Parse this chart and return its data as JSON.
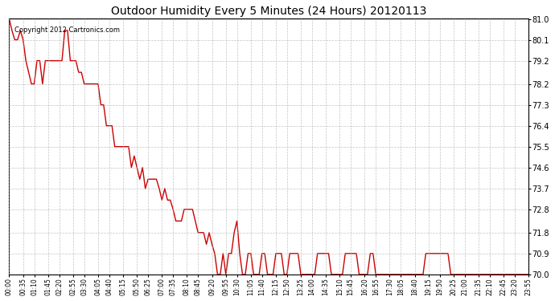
{
  "title": "Outdoor Humidity Every 5 Minutes (24 Hours) 20120113",
  "copyright_text": "Copyright 2012 Cartronics.com",
  "line_color": "#cc0000",
  "background_color": "#ffffff",
  "grid_color": "#aaaaaa",
  "ylim": [
    70.0,
    81.0
  ],
  "yticks": [
    70.0,
    70.9,
    71.8,
    72.8,
    73.7,
    74.6,
    75.5,
    76.4,
    77.3,
    78.2,
    79.2,
    80.1,
    81.0
  ],
  "xlabel": "",
  "ylabel": "",
  "x_labels": [
    "00:00",
    "00:35",
    "01:10",
    "01:45",
    "02:20",
    "02:55",
    "03:30",
    "04:05",
    "04:40",
    "05:15",
    "05:50",
    "06:25",
    "07:00",
    "07:35",
    "08:10",
    "08:45",
    "09:20",
    "09:55",
    "10:30",
    "11:05",
    "11:40",
    "12:15",
    "12:50",
    "13:25",
    "14:00",
    "14:35",
    "15:10",
    "15:45",
    "16:20",
    "16:55",
    "17:30",
    "18:05",
    "18:40",
    "19:15",
    "19:50",
    "20:25",
    "21:00",
    "21:35",
    "22:10",
    "22:45",
    "23:20",
    "23:55"
  ],
  "humidity_data": [
    [
      0,
      81.0
    ],
    [
      1,
      80.5
    ],
    [
      2,
      80.1
    ],
    [
      3,
      80.1
    ],
    [
      4,
      80.5
    ],
    [
      5,
      80.1
    ],
    [
      6,
      79.2
    ],
    [
      7,
      78.7
    ],
    [
      8,
      78.2
    ],
    [
      9,
      78.2
    ],
    [
      10,
      79.2
    ],
    [
      11,
      79.2
    ],
    [
      12,
      78.2
    ],
    [
      13,
      79.2
    ],
    [
      14,
      79.2
    ],
    [
      15,
      79.2
    ],
    [
      16,
      79.2
    ],
    [
      17,
      79.2
    ],
    [
      18,
      79.2
    ],
    [
      19,
      79.2
    ],
    [
      20,
      80.5
    ],
    [
      21,
      80.5
    ],
    [
      22,
      79.2
    ],
    [
      23,
      79.2
    ],
    [
      24,
      79.2
    ],
    [
      25,
      78.7
    ],
    [
      26,
      78.7
    ],
    [
      27,
      78.2
    ],
    [
      28,
      78.2
    ],
    [
      29,
      78.2
    ],
    [
      30,
      78.2
    ],
    [
      31,
      78.2
    ],
    [
      32,
      78.2
    ],
    [
      33,
      77.3
    ],
    [
      34,
      77.3
    ],
    [
      35,
      76.4
    ],
    [
      36,
      76.4
    ],
    [
      37,
      76.4
    ],
    [
      38,
      75.5
    ],
    [
      39,
      75.5
    ],
    [
      40,
      75.5
    ],
    [
      41,
      75.5
    ],
    [
      42,
      75.5
    ],
    [
      43,
      75.5
    ],
    [
      44,
      74.6
    ],
    [
      45,
      75.1
    ],
    [
      46,
      74.6
    ],
    [
      47,
      74.1
    ],
    [
      48,
      74.6
    ],
    [
      49,
      73.7
    ],
    [
      50,
      74.1
    ],
    [
      51,
      74.1
    ],
    [
      52,
      74.1
    ],
    [
      53,
      74.1
    ],
    [
      54,
      73.7
    ],
    [
      55,
      73.2
    ],
    [
      56,
      73.7
    ],
    [
      57,
      73.2
    ],
    [
      58,
      73.2
    ],
    [
      59,
      72.8
    ],
    [
      60,
      72.3
    ],
    [
      61,
      72.3
    ],
    [
      62,
      72.3
    ],
    [
      63,
      72.8
    ],
    [
      64,
      72.8
    ],
    [
      65,
      72.8
    ],
    [
      66,
      72.8
    ],
    [
      67,
      72.3
    ],
    [
      68,
      71.8
    ],
    [
      69,
      71.8
    ],
    [
      70,
      71.8
    ],
    [
      71,
      71.3
    ],
    [
      72,
      71.8
    ],
    [
      73,
      71.3
    ],
    [
      74,
      70.9
    ],
    [
      75,
      70.0
    ],
    [
      76,
      70.0
    ],
    [
      77,
      70.9
    ],
    [
      78,
      70.0
    ],
    [
      79,
      70.9
    ],
    [
      80,
      70.9
    ],
    [
      81,
      71.8
    ],
    [
      82,
      72.3
    ],
    [
      83,
      70.9
    ],
    [
      84,
      70.0
    ],
    [
      85,
      70.0
    ],
    [
      86,
      70.9
    ],
    [
      87,
      70.9
    ],
    [
      88,
      70.0
    ],
    [
      89,
      70.0
    ],
    [
      90,
      70.0
    ],
    [
      91,
      70.9
    ],
    [
      92,
      70.9
    ],
    [
      93,
      70.0
    ],
    [
      94,
      70.0
    ],
    [
      95,
      70.0
    ],
    [
      96,
      70.9
    ],
    [
      97,
      70.9
    ],
    [
      98,
      70.9
    ],
    [
      99,
      70.0
    ],
    [
      100,
      70.0
    ],
    [
      101,
      70.9
    ],
    [
      102,
      70.9
    ],
    [
      103,
      70.9
    ],
    [
      104,
      70.9
    ],
    [
      105,
      70.0
    ],
    [
      106,
      70.0
    ],
    [
      107,
      70.0
    ],
    [
      108,
      70.0
    ],
    [
      109,
      70.0
    ],
    [
      110,
      70.0
    ],
    [
      111,
      70.9
    ],
    [
      112,
      70.9
    ],
    [
      113,
      70.9
    ],
    [
      114,
      70.9
    ],
    [
      115,
      70.9
    ],
    [
      116,
      70.0
    ],
    [
      117,
      70.0
    ],
    [
      118,
      70.0
    ],
    [
      119,
      70.0
    ],
    [
      120,
      70.0
    ],
    [
      121,
      70.9
    ],
    [
      122,
      70.9
    ],
    [
      123,
      70.9
    ],
    [
      124,
      70.9
    ],
    [
      125,
      70.9
    ],
    [
      126,
      70.0
    ],
    [
      127,
      70.0
    ],
    [
      128,
      70.0
    ],
    [
      129,
      70.0
    ],
    [
      130,
      70.9
    ],
    [
      131,
      70.9
    ],
    [
      132,
      70.0
    ],
    [
      133,
      70.0
    ],
    [
      134,
      70.0
    ],
    [
      135,
      70.0
    ],
    [
      136,
      70.0
    ],
    [
      137,
      70.0
    ],
    [
      138,
      70.0
    ],
    [
      139,
      70.0
    ],
    [
      140,
      70.0
    ],
    [
      141,
      70.0
    ],
    [
      142,
      70.0
    ],
    [
      143,
      70.0
    ],
    [
      144,
      70.0
    ],
    [
      145,
      70.0
    ],
    [
      146,
      70.0
    ],
    [
      147,
      70.0
    ],
    [
      148,
      70.0
    ],
    [
      149,
      70.0
    ],
    [
      150,
      70.9
    ],
    [
      151,
      70.9
    ],
    [
      152,
      70.9
    ],
    [
      153,
      70.9
    ],
    [
      154,
      70.9
    ],
    [
      155,
      70.9
    ],
    [
      156,
      70.9
    ],
    [
      157,
      70.9
    ],
    [
      158,
      70.9
    ],
    [
      159,
      70.0
    ],
    [
      160,
      70.0
    ],
    [
      161,
      70.0
    ],
    [
      162,
      70.0
    ],
    [
      163,
      70.0
    ],
    [
      164,
      70.0
    ],
    [
      165,
      70.0
    ],
    [
      166,
      70.0
    ],
    [
      167,
      70.0
    ],
    [
      168,
      70.0
    ],
    [
      169,
      70.0
    ],
    [
      170,
      70.0
    ],
    [
      171,
      70.0
    ],
    [
      172,
      70.0
    ],
    [
      173,
      70.0
    ],
    [
      174,
      70.0
    ],
    [
      175,
      70.0
    ],
    [
      176,
      70.0
    ],
    [
      177,
      70.0
    ],
    [
      178,
      70.0
    ],
    [
      179,
      70.0
    ],
    [
      180,
      70.0
    ],
    [
      181,
      70.0
    ],
    [
      182,
      70.0
    ],
    [
      183,
      70.0
    ],
    [
      184,
      70.0
    ],
    [
      185,
      70.0
    ],
    [
      186,
      70.0
    ],
    [
      187,
      70.0
    ]
  ]
}
